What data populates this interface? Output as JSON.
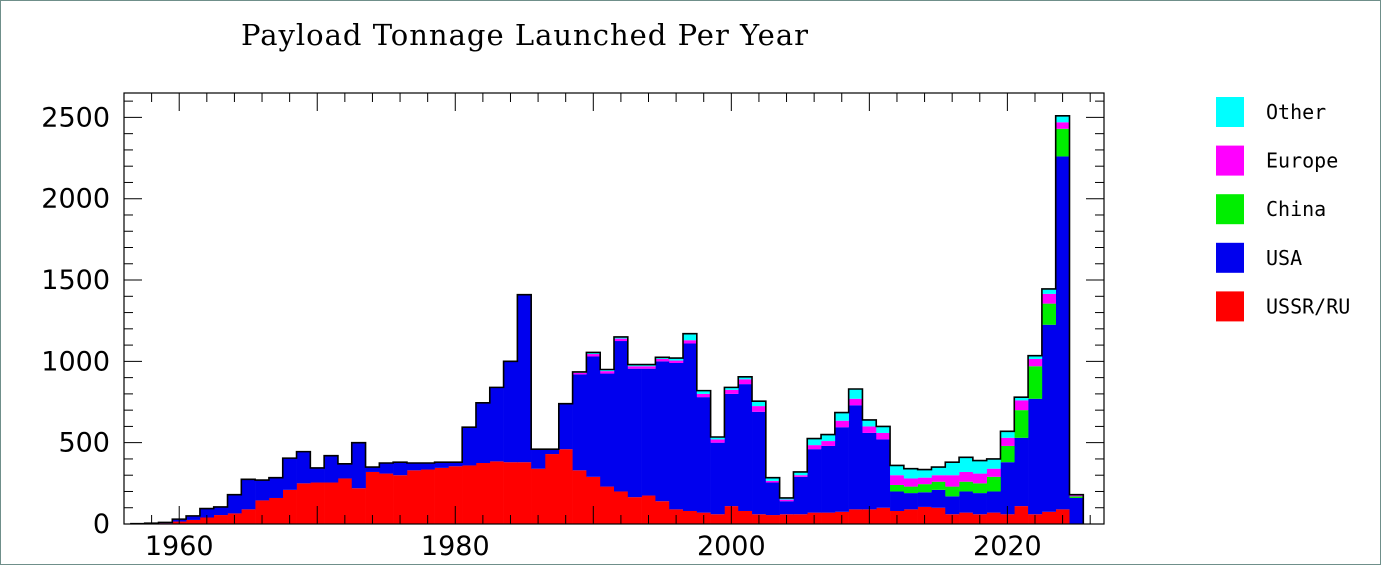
{
  "chart_data": {
    "type": "bar",
    "stacked": true,
    "title": "Payload Tonnage Launched Per Year",
    "xlabel": "",
    "ylabel": "",
    "xlim": [
      1956,
      2027
    ],
    "ylim": [
      0,
      2650
    ],
    "x_ticks": [
      1960,
      1980,
      2000,
      2020
    ],
    "y_ticks": [
      0,
      500,
      1000,
      1500,
      2000,
      2500
    ],
    "grid": false,
    "legend_position": "right",
    "years": [
      1957,
      1958,
      1959,
      1960,
      1961,
      1962,
      1963,
      1964,
      1965,
      1966,
      1967,
      1968,
      1969,
      1970,
      1971,
      1972,
      1973,
      1974,
      1975,
      1976,
      1977,
      1978,
      1979,
      1980,
      1981,
      1982,
      1983,
      1984,
      1985,
      1986,
      1987,
      1988,
      1989,
      1990,
      1991,
      1992,
      1993,
      1994,
      1995,
      1996,
      1997,
      1998,
      1999,
      2000,
      2001,
      2002,
      2003,
      2004,
      2005,
      2006,
      2007,
      2008,
      2009,
      2010,
      2011,
      2012,
      2013,
      2014,
      2015,
      2016,
      2017,
      2018,
      2019,
      2020,
      2021,
      2022,
      2023,
      2024,
      2025
    ],
    "series": [
      {
        "name": "USSR/RU",
        "color": "#ff0000",
        "values": [
          2,
          2,
          5,
          15,
          25,
          40,
          55,
          65,
          90,
          145,
          160,
          210,
          250,
          255,
          255,
          280,
          220,
          320,
          310,
          300,
          330,
          335,
          345,
          355,
          360,
          375,
          385,
          380,
          380,
          340,
          430,
          460,
          330,
          290,
          230,
          200,
          165,
          175,
          140,
          90,
          80,
          70,
          60,
          110,
          80,
          60,
          55,
          60,
          60,
          70,
          70,
          75,
          90,
          90,
          100,
          80,
          90,
          105,
          100,
          60,
          70,
          60,
          70,
          60,
          110,
          60,
          75,
          90,
          0
        ]
      },
      {
        "name": "USA",
        "color": "#0000ee",
        "values": [
          0,
          3,
          5,
          15,
          25,
          55,
          50,
          115,
          185,
          125,
          125,
          195,
          195,
          90,
          165,
          90,
          280,
          30,
          65,
          80,
          45,
          40,
          35,
          25,
          235,
          370,
          455,
          620,
          1030,
          120,
          30,
          280,
          590,
          740,
          695,
          925,
          790,
          780,
          860,
          900,
          1030,
          710,
          440,
          690,
          780,
          630,
          200,
          80,
          230,
          390,
          410,
          520,
          640,
          470,
          420,
          120,
          100,
          90,
          110,
          110,
          130,
          130,
          130,
          320,
          420,
          710,
          1150,
          2170,
          160
        ]
      },
      {
        "name": "China",
        "color": "#00ee00",
        "values": [
          0,
          0,
          0,
          0,
          0,
          0,
          0,
          0,
          0,
          0,
          0,
          0,
          0,
          0,
          0,
          0,
          0,
          0,
          0,
          0,
          0,
          0,
          0,
          0,
          0,
          0,
          0,
          0,
          0,
          0,
          0,
          0,
          0,
          0,
          0,
          0,
          0,
          0,
          0,
          0,
          0,
          0,
          0,
          0,
          0,
          0,
          0,
          0,
          0,
          0,
          0,
          0,
          0,
          0,
          0,
          40,
          40,
          50,
          50,
          60,
          60,
          60,
          90,
          100,
          170,
          200,
          130,
          170,
          10
        ]
      },
      {
        "name": "Europe",
        "color": "#ff00ff",
        "values": [
          0,
          0,
          0,
          0,
          0,
          0,
          0,
          0,
          0,
          0,
          0,
          0,
          0,
          0,
          0,
          0,
          0,
          0,
          0,
          0,
          0,
          0,
          0,
          0,
          0,
          0,
          0,
          0,
          0,
          0,
          0,
          0,
          10,
          15,
          15,
          15,
          15,
          15,
          15,
          15,
          20,
          20,
          20,
          25,
          30,
          35,
          10,
          10,
          10,
          25,
          30,
          40,
          40,
          40,
          40,
          60,
          50,
          40,
          40,
          70,
          60,
          60,
          50,
          50,
          60,
          45,
          60,
          40,
          5
        ]
      },
      {
        "name": "Other",
        "color": "#00ffff",
        "values": [
          0,
          0,
          0,
          0,
          0,
          0,
          0,
          0,
          0,
          0,
          0,
          0,
          0,
          0,
          0,
          0,
          0,
          0,
          0,
          0,
          0,
          0,
          0,
          0,
          0,
          0,
          0,
          0,
          0,
          0,
          0,
          0,
          5,
          10,
          10,
          10,
          10,
          10,
          10,
          15,
          40,
          20,
          15,
          15,
          15,
          30,
          20,
          10,
          20,
          40,
          40,
          50,
          60,
          40,
          40,
          60,
          60,
          50,
          50,
          80,
          90,
          80,
          60,
          40,
          20,
          20,
          30,
          40,
          5
        ]
      }
    ]
  }
}
